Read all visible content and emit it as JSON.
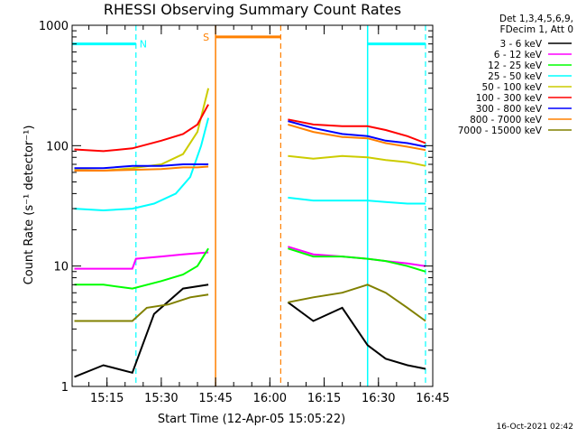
{
  "chart_data": {
    "type": "line",
    "title": "RHESSI Observing Summary Count Rates",
    "xlabel": "Start Time (12-Apr-05 15:05:22)",
    "ylabel": "Count Rate (s⁻¹ detector⁻¹)",
    "y_scale": "log",
    "ylim": [
      1,
      1000
    ],
    "xlim": [
      "15:05:22",
      "16:45:00"
    ],
    "x_ticks": [
      "15:15",
      "15:30",
      "15:45",
      "16:00",
      "16:15",
      "16:30",
      "16:45"
    ],
    "y_ticks": [
      "1",
      "10",
      "100",
      "1000"
    ],
    "grid": false,
    "legend_position": "right",
    "legend_header": [
      "Det 1,3,4,5,6,9,",
      "FDecim 1, Att 0"
    ],
    "series": [
      {
        "name": "3 - 6 keV",
        "color": "#000000",
        "x": [
          "15:06",
          "15:14",
          "15:22",
          "15:28",
          "15:36",
          "15:43",
          "16:05",
          "16:12",
          "16:20",
          "16:27",
          "16:32",
          "16:38",
          "16:43"
        ],
        "y": [
          1.2,
          1.5,
          1.3,
          4.0,
          6.5,
          7.0,
          5.0,
          3.5,
          4.5,
          2.2,
          1.7,
          1.5,
          1.4
        ]
      },
      {
        "name": "6 - 12 keV",
        "color": "#ff00ff",
        "x": [
          "15:06",
          "15:14",
          "15:22",
          "15:23",
          "15:30",
          "15:36",
          "15:43",
          "16:05",
          "16:12",
          "16:20",
          "16:27",
          "16:32",
          "16:38",
          "16:43"
        ],
        "y": [
          9.5,
          9.5,
          9.5,
          11.5,
          12.0,
          12.5,
          13.0,
          14.5,
          12.5,
          12.0,
          11.5,
          11.0,
          10.5,
          10.0
        ]
      },
      {
        "name": "12 - 25 keV",
        "color": "#00ff00",
        "x": [
          "15:06",
          "15:14",
          "15:22",
          "15:30",
          "15:36",
          "15:40",
          "15:43",
          "16:05",
          "16:12",
          "16:20",
          "16:27",
          "16:32",
          "16:38",
          "16:43"
        ],
        "y": [
          7.0,
          7.0,
          6.5,
          7.5,
          8.5,
          10.0,
          14.0,
          14.0,
          12.0,
          12.0,
          11.5,
          11.0,
          10.0,
          9.0
        ]
      },
      {
        "name": "25 - 50 keV",
        "color": "#00ffff",
        "x": [
          "15:06",
          "15:14",
          "15:22",
          "15:28",
          "15:34",
          "15:38",
          "15:41",
          "15:43",
          "16:05",
          "16:12",
          "16:20",
          "16:27",
          "16:32",
          "16:38",
          "16:43"
        ],
        "y": [
          30,
          29,
          30,
          33,
          40,
          55,
          100,
          170,
          37,
          35,
          35,
          35,
          34,
          33,
          33
        ]
      },
      {
        "name": "50 - 100 keV",
        "color": "#cccc00",
        "x": [
          "15:06",
          "15:14",
          "15:22",
          "15:30",
          "15:36",
          "15:40",
          "15:43",
          "16:05",
          "16:12",
          "16:20",
          "16:27",
          "16:32",
          "16:38",
          "16:43"
        ],
        "y": [
          63,
          62,
          65,
          70,
          85,
          130,
          300,
          82,
          78,
          82,
          80,
          76,
          73,
          68
        ]
      },
      {
        "name": "100 - 300 keV",
        "color": "#ff0000",
        "x": [
          "15:06",
          "15:14",
          "15:22",
          "15:30",
          "15:36",
          "15:40",
          "15:43",
          "16:05",
          "16:12",
          "16:20",
          "16:27",
          "16:32",
          "16:38",
          "16:43"
        ],
        "y": [
          93,
          90,
          95,
          110,
          125,
          150,
          220,
          165,
          150,
          145,
          145,
          135,
          120,
          105
        ]
      },
      {
        "name": "300 - 800 keV",
        "color": "#0000ff",
        "x": [
          "15:06",
          "15:14",
          "15:22",
          "15:30",
          "15:36",
          "15:40",
          "15:43",
          "16:05",
          "16:12",
          "16:20",
          "16:27",
          "16:32",
          "16:38",
          "16:43"
        ],
        "y": [
          65,
          65,
          68,
          68,
          70,
          70,
          70,
          160,
          140,
          125,
          120,
          110,
          105,
          98
        ]
      },
      {
        "name": "800 - 7000 keV",
        "color": "#ff8000",
        "x": [
          "15:06",
          "15:14",
          "15:22",
          "15:30",
          "15:36",
          "15:40",
          "15:43",
          "16:05",
          "16:12",
          "16:20",
          "16:27",
          "16:32",
          "16:38",
          "16:43"
        ],
        "y": [
          62,
          62,
          63,
          64,
          66,
          66,
          67,
          150,
          130,
          118,
          115,
          105,
          98,
          92
        ]
      },
      {
        "name": "7000 - 15000 keV",
        "color": "#808000",
        "x": [
          "15:06",
          "15:14",
          "15:22",
          "15:26",
          "15:32",
          "15:38",
          "15:43",
          "16:05",
          "16:12",
          "16:20",
          "16:27",
          "16:32",
          "16:38",
          "16:43"
        ],
        "y": [
          3.5,
          3.5,
          3.5,
          4.5,
          4.8,
          5.5,
          5.8,
          5.0,
          5.5,
          6.0,
          7.0,
          6.0,
          4.5,
          3.5
        ]
      }
    ],
    "annotations": {
      "night_label": "N",
      "saa_label": "S",
      "night_color": "#00ffff",
      "saa_color": "#ff8000",
      "night_intervals": [
        [
          "15:05:22",
          "15:23"
        ],
        [
          "16:27",
          "16:43"
        ]
      ],
      "saa_interval": [
        "15:45",
        "16:03"
      ],
      "night_bar_level": 700,
      "saa_bar_level": 800
    },
    "footer_timestamp": "16-Oct-2021 02:42"
  }
}
